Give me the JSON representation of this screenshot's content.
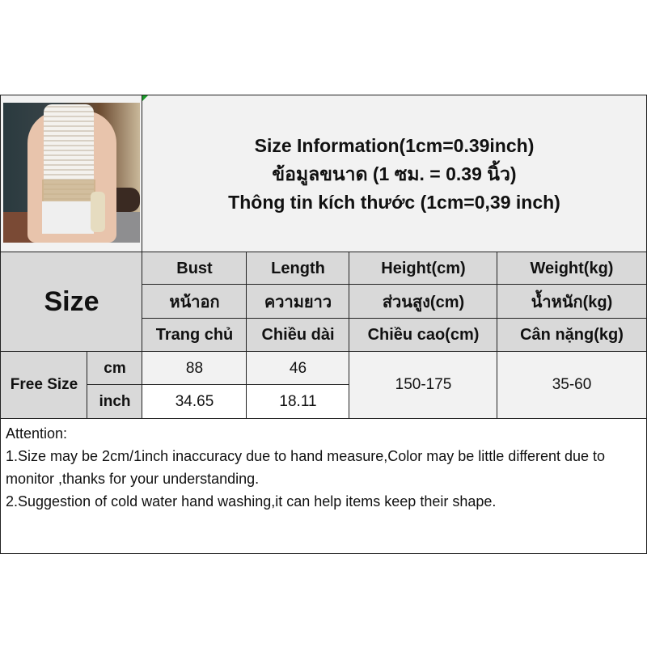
{
  "title": {
    "line1": "Size Information(1cm=0.39inch)",
    "line2": "ข้อมูลขนาด (1 ซม. = 0.39 นิ้ว)",
    "line3": "Thông tin kích thước (1cm=0,39 inch)"
  },
  "size_label": "Size",
  "columns": [
    {
      "en": "Bust",
      "th": "หน้าอก",
      "vi": "Trang chủ"
    },
    {
      "en": "Length",
      "th": "ความยาว",
      "vi": "Chiều dài"
    },
    {
      "en": "Height(cm)",
      "th": "ส่วนสูง(cm)",
      "vi": "Chiều cao(cm)"
    },
    {
      "en": "Weight(kg)",
      "th": "น้ำหนัก(kg)",
      "vi": "Cân nặng(kg)"
    }
  ],
  "row": {
    "size": "Free Size",
    "unit_cm": "cm",
    "unit_inch": "inch",
    "bust_cm": "88",
    "length_cm": "46",
    "bust_inch": "34.65",
    "length_inch": "18.11",
    "height": "150-175",
    "weight": "35-60"
  },
  "attention": {
    "heading": "Attention:",
    "line1": "1.Size may be 2cm/1inch inaccuracy due to hand measure,Color may be little different due to monitor ,thanks for your understanding.",
    "line2": "2.Suggestion of cold water hand washing,it can help items keep their shape."
  }
}
